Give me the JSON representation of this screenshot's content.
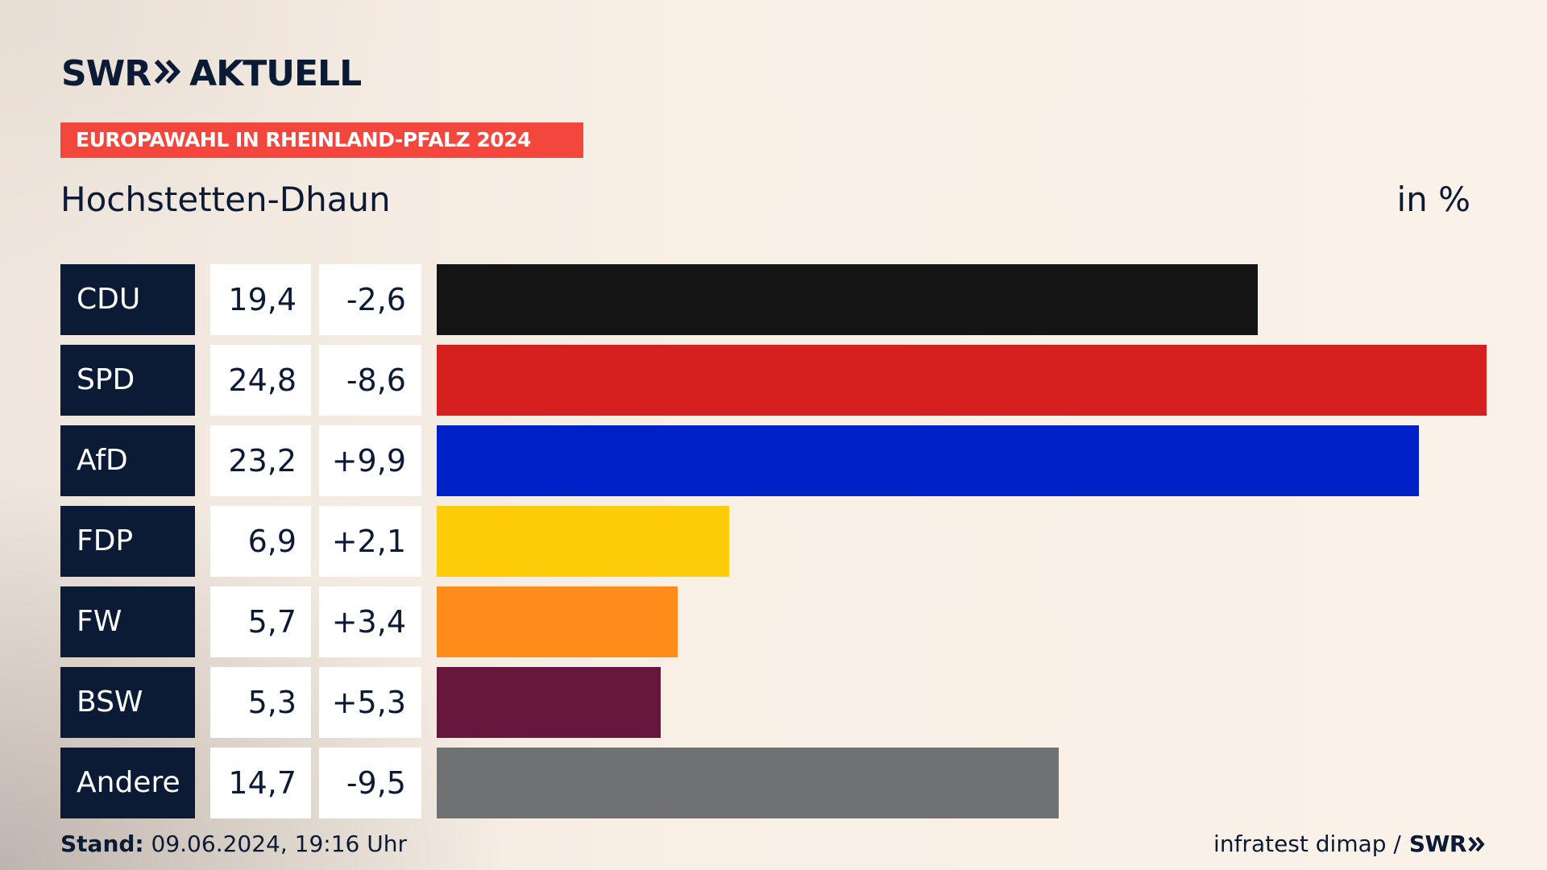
{
  "brand": {
    "part1": "SWR",
    "part2": "AKTUELL"
  },
  "kicker": "EUROPAWAHL IN RHEINLAND-PFALZ 2024",
  "place": "Hochstetten-Dhaun",
  "unit": "in %",
  "footer": {
    "stand_label": "Stand:",
    "stand_value": "09.06.2024, 19:16 Uhr",
    "source": "infratest dimap /",
    "source_brand": "SWR"
  },
  "chart_data": {
    "type": "bar",
    "orientation": "horizontal",
    "categories": [
      "CDU",
      "SPD",
      "AfD",
      "FDP",
      "FW",
      "BSW",
      "Andere"
    ],
    "values": [
      19.4,
      24.8,
      23.2,
      6.9,
      5.7,
      5.3,
      14.7
    ],
    "value_labels": [
      "19,4",
      "24,8",
      "23,2",
      "6,9",
      "5,7",
      "5,3",
      "14,7"
    ],
    "change_labels": [
      "-2,6",
      "-8,6",
      "+9,9",
      "+2,1",
      "+3,4",
      "+5,3",
      "-9,5"
    ],
    "changes": [
      -2.6,
      -8.6,
      9.9,
      2.1,
      3.4,
      5.3,
      -9.5
    ],
    "colors": [
      "#141414",
      "#d61f1f",
      "#0020c8",
      "#ffcc09",
      "#ff8c1a",
      "#65173d",
      "#707173"
    ],
    "xlim": [
      0,
      24.8
    ],
    "grid": false
  }
}
